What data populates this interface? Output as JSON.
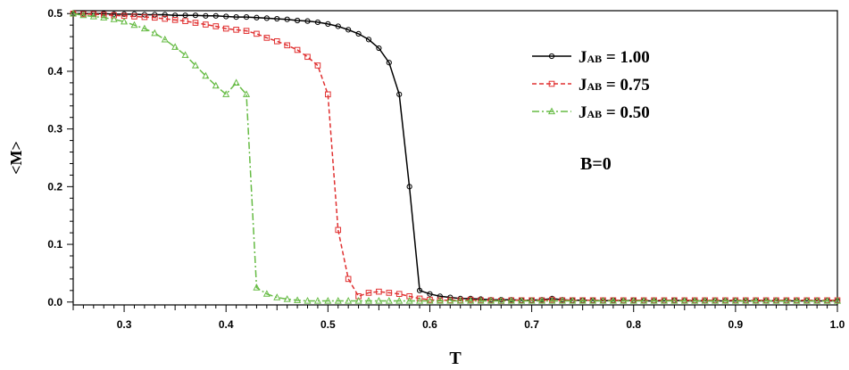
{
  "chart_data": {
    "type": "line",
    "title": "",
    "xlabel": "T",
    "ylabel": "<M>",
    "xlim": [
      0.25,
      1.0
    ],
    "ylim": [
      -0.005,
      0.505
    ],
    "grid": false,
    "legend_position": "top-right",
    "x_ticks": [
      0.3,
      0.4,
      0.5,
      0.6,
      0.7,
      0.8,
      0.9,
      1.0
    ],
    "x_tick_labels": [
      "0.3",
      "0.4",
      "0.5",
      "0.6",
      "0.7",
      "0.8",
      "0.9",
      "1.0"
    ],
    "y_ticks": [
      0.0,
      0.1,
      0.2,
      0.3,
      0.4,
      0.5
    ],
    "y_tick_labels": [
      "0.0",
      "0.1",
      "0.2",
      "0.3",
      "0.4",
      "0.5"
    ],
    "annotation": "B=0",
    "series": [
      {
        "name_main": "J",
        "name_sub": "AB",
        "name_rest": " = 1.00",
        "color": "#000000",
        "dash": "",
        "marker": "circle",
        "x": [
          0.25,
          0.26,
          0.27,
          0.28,
          0.29,
          0.3,
          0.31,
          0.32,
          0.33,
          0.34,
          0.35,
          0.36,
          0.37,
          0.38,
          0.39,
          0.4,
          0.41,
          0.42,
          0.43,
          0.44,
          0.45,
          0.46,
          0.47,
          0.48,
          0.49,
          0.5,
          0.51,
          0.52,
          0.53,
          0.54,
          0.55,
          0.56,
          0.57,
          0.58,
          0.59,
          0.6,
          0.61,
          0.62,
          0.63,
          0.64,
          0.65,
          0.66,
          0.67,
          0.68,
          0.69,
          0.7,
          0.71,
          0.72,
          0.73,
          0.74,
          0.75,
          0.76,
          0.77,
          0.78,
          0.79,
          0.8,
          0.81,
          0.82,
          0.83,
          0.84,
          0.85,
          0.86,
          0.87,
          0.88,
          0.89,
          0.9,
          0.91,
          0.92,
          0.93,
          0.94,
          0.95,
          0.96,
          0.97,
          0.98,
          0.99,
          1.0
        ],
        "y": [
          0.5,
          0.5,
          0.5,
          0.5,
          0.499,
          0.499,
          0.499,
          0.498,
          0.498,
          0.498,
          0.497,
          0.497,
          0.497,
          0.496,
          0.496,
          0.495,
          0.494,
          0.494,
          0.493,
          0.492,
          0.491,
          0.49,
          0.488,
          0.487,
          0.485,
          0.482,
          0.478,
          0.472,
          0.465,
          0.455,
          0.44,
          0.415,
          0.36,
          0.2,
          0.02,
          0.014,
          0.01,
          0.008,
          0.006,
          0.006,
          0.005,
          0.004,
          0.004,
          0.004,
          0.003,
          0.003,
          0.004,
          0.006,
          0.004,
          0.003,
          0.003,
          0.003,
          0.002,
          0.003,
          0.002,
          0.003,
          0.002,
          0.002,
          0.002,
          0.003,
          0.002,
          0.002,
          0.002,
          0.002,
          0.002,
          0.002,
          0.002,
          0.002,
          0.002,
          0.002,
          0.002,
          0.002,
          0.002,
          0.002,
          0.002,
          0.002
        ]
      },
      {
        "name_main": "J",
        "name_sub": "AB",
        "name_rest": " = 0.75",
        "color": "#e03030",
        "dash": "5,3",
        "marker": "square",
        "x": [
          0.25,
          0.26,
          0.27,
          0.28,
          0.29,
          0.3,
          0.31,
          0.32,
          0.33,
          0.34,
          0.35,
          0.36,
          0.37,
          0.38,
          0.39,
          0.4,
          0.41,
          0.42,
          0.43,
          0.44,
          0.45,
          0.46,
          0.47,
          0.48,
          0.49,
          0.5,
          0.51,
          0.52,
          0.53,
          0.54,
          0.55,
          0.56,
          0.57,
          0.58,
          0.59,
          0.6,
          0.61,
          0.62,
          0.63,
          0.64,
          0.65,
          0.66,
          0.67,
          0.68,
          0.69,
          0.7,
          0.71,
          0.72,
          0.73,
          0.74,
          0.75,
          0.76,
          0.77,
          0.78,
          0.79,
          0.8,
          0.81,
          0.82,
          0.83,
          0.84,
          0.85,
          0.86,
          0.87,
          0.88,
          0.89,
          0.9,
          0.91,
          0.92,
          0.93,
          0.94,
          0.95,
          0.96,
          0.97,
          0.98,
          0.99,
          1.0
        ],
        "y": [
          0.5,
          0.499,
          0.499,
          0.498,
          0.497,
          0.496,
          0.495,
          0.494,
          0.493,
          0.491,
          0.489,
          0.487,
          0.484,
          0.481,
          0.478,
          0.474,
          0.472,
          0.47,
          0.465,
          0.458,
          0.452,
          0.445,
          0.437,
          0.425,
          0.41,
          0.36,
          0.125,
          0.04,
          0.01,
          0.016,
          0.018,
          0.016,
          0.014,
          0.01,
          0.006,
          0.004,
          0.003,
          0.003,
          0.003,
          0.004,
          0.003,
          0.003,
          0.002,
          0.003,
          0.003,
          0.003,
          0.003,
          0.004,
          0.003,
          0.003,
          0.003,
          0.003,
          0.003,
          0.003,
          0.003,
          0.003,
          0.003,
          0.003,
          0.003,
          0.003,
          0.003,
          0.003,
          0.003,
          0.003,
          0.003,
          0.003,
          0.003,
          0.003,
          0.003,
          0.003,
          0.003,
          0.003,
          0.003,
          0.003,
          0.003,
          0.003
        ]
      },
      {
        "name_main": "J",
        "name_sub": "AB",
        "name_rest": " = 0.50",
        "color": "#66bb44",
        "dash": "8,3,2,3",
        "marker": "triangle",
        "x": [
          0.25,
          0.26,
          0.27,
          0.28,
          0.29,
          0.3,
          0.31,
          0.32,
          0.33,
          0.34,
          0.35,
          0.36,
          0.37,
          0.38,
          0.39,
          0.4,
          0.41,
          0.42,
          0.43,
          0.44,
          0.45,
          0.46,
          0.47,
          0.48,
          0.49,
          0.5,
          0.51,
          0.52,
          0.53,
          0.54,
          0.55,
          0.56,
          0.57,
          0.58,
          0.59,
          0.6,
          0.61,
          0.62,
          0.63,
          0.64,
          0.65,
          0.66,
          0.67,
          0.68,
          0.69,
          0.7,
          0.71,
          0.72,
          0.73,
          0.74,
          0.75,
          0.76,
          0.77,
          0.78,
          0.79,
          0.8,
          0.81,
          0.82,
          0.83,
          0.84,
          0.85,
          0.86,
          0.87,
          0.88,
          0.89,
          0.9,
          0.91,
          0.92,
          0.93,
          0.94,
          0.95,
          0.96,
          0.97,
          0.98,
          0.99,
          1.0
        ],
        "y": [
          0.5,
          0.497,
          0.495,
          0.493,
          0.49,
          0.486,
          0.48,
          0.474,
          0.466,
          0.455,
          0.442,
          0.428,
          0.41,
          0.392,
          0.375,
          0.36,
          0.38,
          0.36,
          0.025,
          0.014,
          0.008,
          0.005,
          0.003,
          0.002,
          0.002,
          0.002,
          0.002,
          0.002,
          0.002,
          0.002,
          0.002,
          0.002,
          0.002,
          0.002,
          0.002,
          0.002,
          0.002,
          0.002,
          0.002,
          0.002,
          0.002,
          0.002,
          0.002,
          0.002,
          0.002,
          0.002,
          0.002,
          0.002,
          0.002,
          0.002,
          0.002,
          0.002,
          0.002,
          0.002,
          0.002,
          0.002,
          0.002,
          0.002,
          0.002,
          0.002,
          0.002,
          0.002,
          0.002,
          0.002,
          0.002,
          0.002,
          0.002,
          0.002,
          0.002,
          0.002,
          0.002,
          0.002,
          0.002,
          0.002,
          0.002,
          0.002
        ]
      }
    ]
  }
}
